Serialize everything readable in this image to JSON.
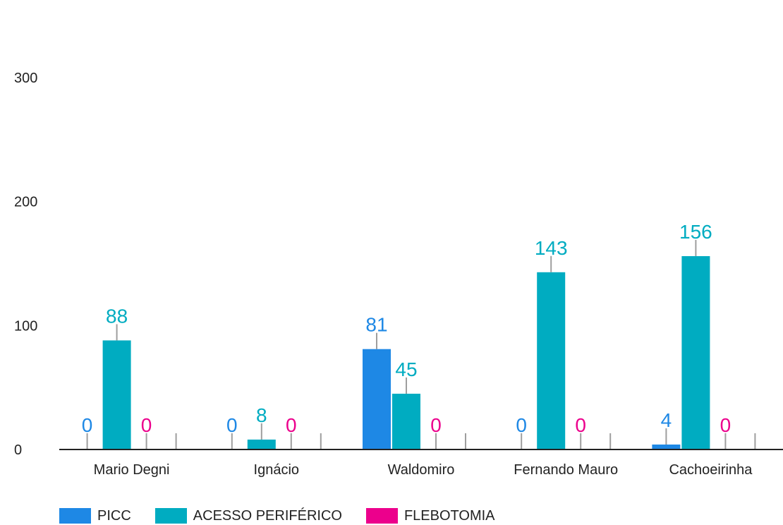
{
  "chart_data": {
    "type": "bar",
    "categories": [
      "Mario Degni",
      "Ignácio",
      "Waldomiro",
      "Fernando Mauro",
      "Cachoeirinha"
    ],
    "series": [
      {
        "name": "PICC",
        "color": "#1e88e5",
        "values": [
          0,
          0,
          81,
          0,
          4
        ]
      },
      {
        "name": "ACESSO PERIFÉRICO",
        "color": "#00acc1",
        "values": [
          88,
          8,
          45,
          143,
          156
        ]
      },
      {
        "name": "FLEBOTOMIA",
        "color": "#ec008c",
        "values": [
          0,
          0,
          0,
          0,
          0
        ]
      }
    ],
    "y_ticks": [
      "0",
      "100",
      "200",
      "300"
    ],
    "ylim": [
      0,
      300
    ],
    "grid": false,
    "legend_position": "bottom-left",
    "title": "",
    "xlabel": "",
    "ylabel": ""
  }
}
